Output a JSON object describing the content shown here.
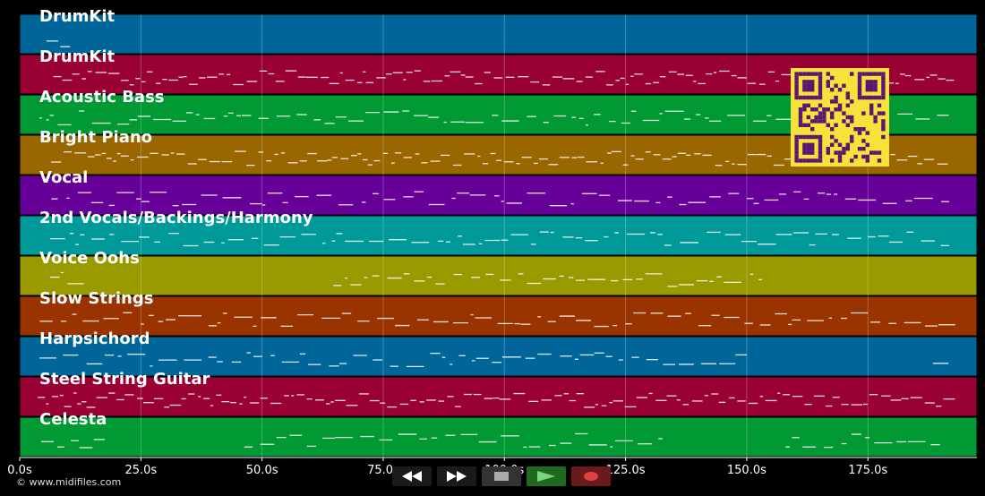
{
  "tracks": [
    {
      "name": "DrumKit",
      "color": "#006699"
    },
    {
      "name": "DrumKit",
      "color": "#990033"
    },
    {
      "name": "Acoustic Bass",
      "color": "#009933"
    },
    {
      "name": "Bright Piano",
      "color": "#996600"
    },
    {
      "name": "Vocal",
      "color": "#660099"
    },
    {
      "name": "2nd Vocals/Backings/Harmony",
      "color": "#009999"
    },
    {
      "name": "Voice Oohs",
      "color": "#999900"
    },
    {
      "name": "Slow Strings",
      "color": "#993300"
    },
    {
      "name": "Harpsichord",
      "color": "#006699"
    },
    {
      "name": "Steel String Guitar",
      "color": "#990033"
    },
    {
      "name": "Celesta",
      "color": "#009933"
    }
  ],
  "timeline": {
    "ticks": [
      "0.0s",
      "25.0s",
      "50.0s",
      "75.0s",
      "100.0s",
      "125.0s",
      "150.0s",
      "175.0s"
    ],
    "tick_values": [
      0,
      25,
      50,
      75,
      100,
      125,
      150,
      175
    ],
    "max_seconds": 197.5
  },
  "copyright": "© www.midifiles.com",
  "transport": {
    "rewind_icon": "rewind-icon",
    "fast_forward_icon": "fast-forward-icon",
    "stop_icon": "stop-icon",
    "play_icon": "play-icon",
    "record_icon": "record-icon"
  },
  "qr_code": {
    "colors": {
      "fg": "#5a1670",
      "bg": "#f6e23a"
    }
  }
}
